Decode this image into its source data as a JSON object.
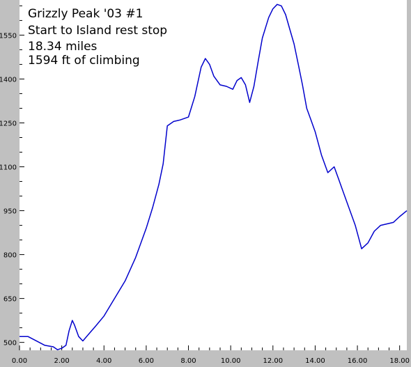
{
  "chart_data": {
    "type": "line",
    "title_lines": [
      "Grizzly Peak '03 #1",
      "Start to Island rest stop",
      "18.34 miles",
      "1594 ft of climbing"
    ],
    "xlabel": "",
    "ylabel": "",
    "xlim": [
      0,
      18.34
    ],
    "ylim": [
      473,
      1670
    ],
    "x_ticks": [
      0,
      2,
      4,
      6,
      8,
      10,
      12,
      14,
      16,
      18
    ],
    "x_tick_labels": [
      "0.00",
      "2.00",
      "4.00",
      "6.00",
      "8.00",
      "10.00",
      "12.00",
      "14.00",
      "16.00",
      "18.00"
    ],
    "y_ticks": [
      500,
      650,
      800,
      950,
      1100,
      1250,
      1400,
      1550
    ],
    "y_tick_labels": [
      "500",
      "650",
      "800",
      "950",
      "1100",
      "1250",
      "1400",
      "1550"
    ],
    "grid": false,
    "colors": {
      "line": "#0000cc",
      "plot_background": "#ffffff",
      "frame_background": "#c0c0c0"
    },
    "series": [
      {
        "x": [
          0,
          0.4,
          0.8,
          1.2,
          1.6,
          1.8,
          2.0,
          2.2,
          2.35,
          2.5,
          2.6,
          2.8,
          3.0,
          3.3,
          3.6,
          4.0,
          4.5,
          5.0,
          5.5,
          6.0,
          6.3,
          6.6,
          6.8,
          7.0,
          7.3,
          7.6,
          8.0,
          8.3,
          8.6,
          8.8,
          9.0,
          9.2,
          9.5,
          9.8,
          10.1,
          10.3,
          10.5,
          10.7,
          10.9,
          11.1,
          11.3,
          11.5,
          11.8,
          12.0,
          12.2,
          12.4,
          12.6,
          12.8,
          13.0,
          13.2,
          13.4,
          13.6,
          13.8,
          14.0,
          14.3,
          14.6,
          14.9,
          15.1,
          15.3,
          15.6,
          15.9,
          16.2,
          16.5,
          16.8,
          17.1,
          17.4,
          17.7,
          18.0,
          18.34
        ],
        "y": [
          520,
          520,
          505,
          490,
          485,
          475,
          480,
          490,
          540,
          575,
          560,
          520,
          505,
          530,
          555,
          590,
          650,
          710,
          790,
          890,
          960,
          1040,
          1110,
          1240,
          1255,
          1260,
          1270,
          1340,
          1440,
          1470,
          1450,
          1410,
          1380,
          1375,
          1365,
          1395,
          1405,
          1380,
          1320,
          1375,
          1460,
          1540,
          1610,
          1640,
          1655,
          1650,
          1620,
          1570,
          1520,
          1450,
          1380,
          1300,
          1260,
          1220,
          1140,
          1080,
          1100,
          1060,
          1020,
          960,
          900,
          820,
          840,
          880,
          900,
          905,
          910,
          930,
          950
        ]
      }
    ]
  }
}
